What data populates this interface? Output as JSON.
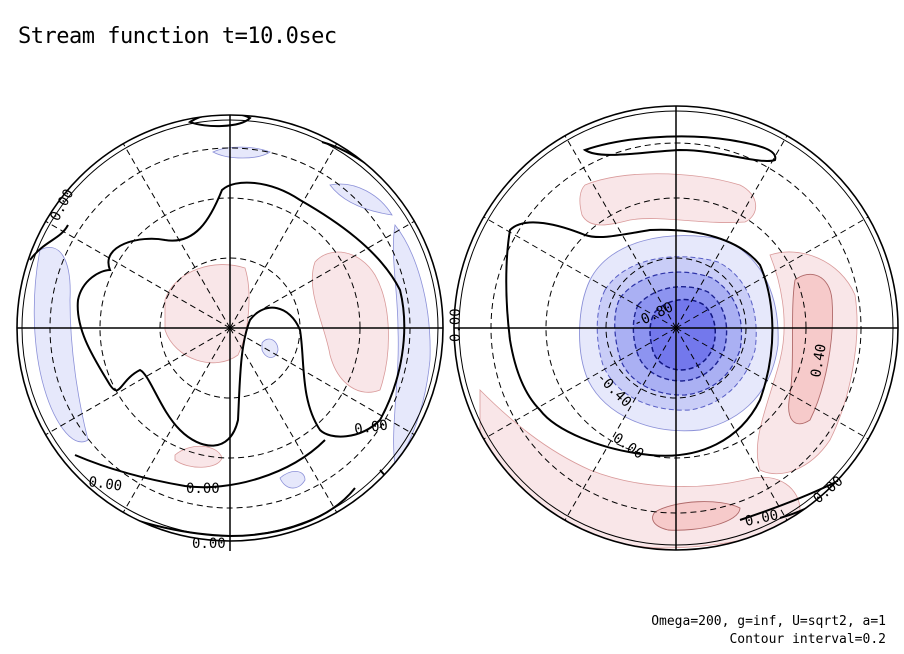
{
  "chart_data": {
    "type": "contour",
    "title": "Stream function t=10.0sec",
    "projection": "orthographic-polar",
    "hemispheres": [
      {
        "name": "",
        "contour_labels": [
          "0.00",
          "0.00",
          "0.00",
          "0.00",
          "0.00",
          "0.00"
        ],
        "fields": [
          {
            "kind": "positive",
            "level": 0.2,
            "color": "#f9e6e8"
          },
          {
            "kind": "negative",
            "level": -0.2,
            "color": "#e6e8fb"
          }
        ]
      },
      {
        "name": "",
        "contour_labels": [
          "-0.80",
          "-0.40",
          "0.40",
          "0.00",
          "0.00",
          "0.00",
          "0.00"
        ],
        "fields": [
          {
            "kind": "negative",
            "level": -0.2,
            "color": "#e6e8fb"
          },
          {
            "kind": "negative",
            "level": -0.4,
            "color": "#c9cdf7"
          },
          {
            "kind": "negative",
            "level": -0.6,
            "color": "#aab0f3"
          },
          {
            "kind": "negative",
            "level": -0.8,
            "color": "#8d94f0"
          },
          {
            "kind": "negative",
            "level": -1.0,
            "color": "#7378ec"
          },
          {
            "kind": "positive",
            "level": 0.2,
            "color": "#f9e6e8"
          },
          {
            "kind": "positive",
            "level": 0.4,
            "color": "#f6caca"
          }
        ]
      }
    ],
    "shared_label": "0.00",
    "grid": true,
    "contour_interval": 0.2
  },
  "annotations": {
    "params": "Omega=200, g=inf, U=sqrt2, a=1",
    "interval": "Contour interval=0.2"
  },
  "colors": {
    "positive_light": "#f9e6e8",
    "positive_mid": "#f6caca",
    "negative_light": "#e6e8fb",
    "negative_dark": "#7378ec"
  }
}
